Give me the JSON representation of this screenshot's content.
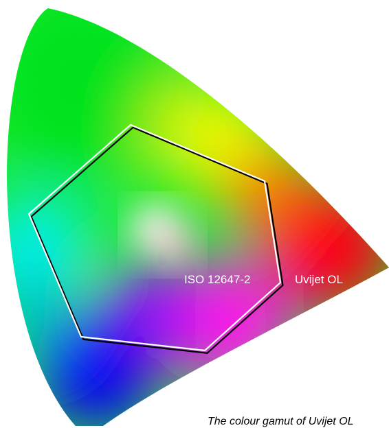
{
  "labels": {
    "iso": "ISO 12647-2",
    "uvijet": "Uvijet OL"
  },
  "caption": "The colour gamut of Uvijet OL",
  "colors": {
    "green": "#00e21b",
    "yellow": "#f2ff00",
    "red": "#ff0012",
    "magenta": "#ff10f0",
    "blue": "#0800f8",
    "cyan": "#00f2ee",
    "white_point": "#f4f0ee",
    "iso_outline": "#ffffff",
    "uvijet_outline": "#000000"
  }
}
